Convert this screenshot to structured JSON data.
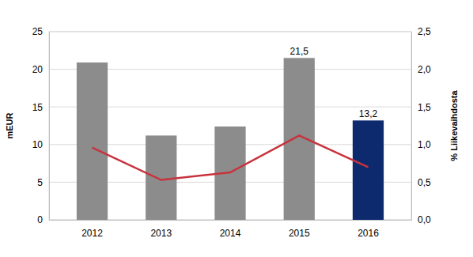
{
  "chart_data": {
    "type": "bar",
    "categories": [
      "2012",
      "2013",
      "2014",
      "2015",
      "2016"
    ],
    "y_label": "mEUR",
    "y2_label": "% Liikevaihdosta",
    "ylim": [
      0,
      25
    ],
    "yticks": [
      0,
      5,
      10,
      15,
      20,
      25
    ],
    "y2lim": [
      0,
      2.5
    ],
    "y2ticks": [
      {
        "value": 0,
        "label": "0,0"
      },
      {
        "value": 0.5,
        "label": "0,5"
      },
      {
        "value": 1,
        "label": "1,0"
      },
      {
        "value": 1.5,
        "label": "1,5"
      },
      {
        "value": 2,
        "label": "2,0"
      },
      {
        "value": 2.5,
        "label": "2,5"
      }
    ],
    "grid": true,
    "series": [
      {
        "type": "bar",
        "values": [
          20.9,
          11.2,
          12.4,
          21.5,
          13.2
        ],
        "value_labels": [
          null,
          null,
          null,
          "21,5",
          "13,2"
        ],
        "colors": [
          "#8c8c8c",
          "#8c8c8c",
          "#8c8c8c",
          "#8c8c8c",
          "#0d2a6e"
        ]
      },
      {
        "type": "line",
        "axis": "y2",
        "color": "#c8323c",
        "values": [
          0.96,
          0.53,
          0.63,
          1.12,
          0.7
        ]
      }
    ]
  }
}
